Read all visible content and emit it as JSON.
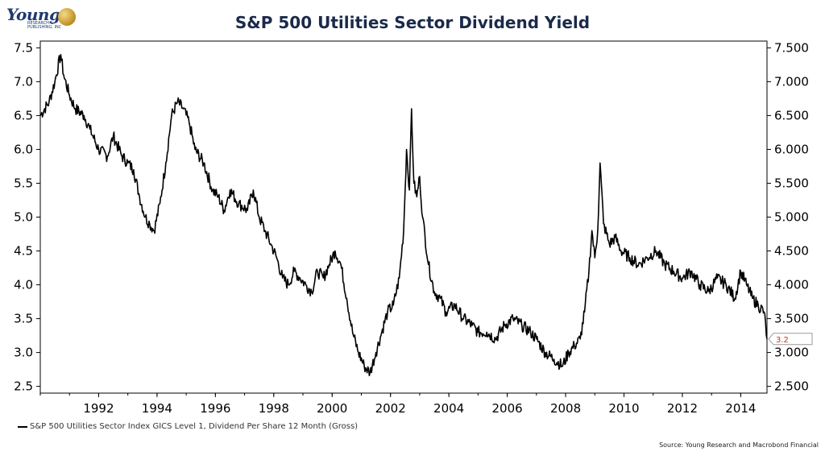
{
  "logo": {
    "word": "Young",
    "sub": "RESEARCH & PUBLISHING, INC"
  },
  "chart_data": {
    "type": "line",
    "title": "S&P 500 Utilities Sector Dividend Yield",
    "xlabel": "",
    "ylabel": "",
    "xlim": [
      1990.0,
      2014.9
    ],
    "ylim": [
      2.4,
      7.6
    ],
    "x_ticks": [
      "1992",
      "1994",
      "1996",
      "1998",
      "2000",
      "2002",
      "2004",
      "2006",
      "2008",
      "2010",
      "2012",
      "2014"
    ],
    "y_ticks_left": [
      "2.5",
      "3.0",
      "3.5",
      "4.0",
      "4.5",
      "5.0",
      "5.5",
      "6.0",
      "6.5",
      "7.0",
      "7.5"
    ],
    "y_ticks_right": [
      "2.500",
      "3.000",
      "3.500",
      "4.000",
      "4.500",
      "5.000",
      "5.500",
      "6.000",
      "6.500",
      "7.000",
      "7.500"
    ],
    "last_value_label": "3.2",
    "legend_position": "bottom-left",
    "grid": false,
    "series": [
      {
        "name": "S&P 500 Utilities Sector Index GICS Level 1, Dividend Per Share 12 Month (Gross)",
        "color": "#000000",
        "x": [
          1990.0,
          1990.3,
          1990.5,
          1990.7,
          1990.8,
          1991.0,
          1991.2,
          1991.5,
          1991.7,
          1992.0,
          1992.3,
          1992.5,
          1992.8,
          1993.0,
          1993.2,
          1993.4,
          1993.6,
          1993.75,
          1993.9,
          1994.1,
          1994.3,
          1994.5,
          1994.7,
          1994.9,
          1995.1,
          1995.3,
          1995.6,
          1995.9,
          1996.1,
          1996.3,
          1996.5,
          1996.8,
          1997.1,
          1997.3,
          1997.5,
          1997.7,
          1997.9,
          1998.1,
          1998.3,
          1998.5,
          1998.7,
          1998.9,
          1999.1,
          1999.3,
          1999.5,
          1999.7,
          1999.9,
          2000.1,
          2000.3,
          2000.5,
          2000.7,
          2000.9,
          2001.1,
          2001.3,
          2001.5,
          2001.7,
          2001.9,
          2002.1,
          2002.3,
          2002.45,
          2002.55,
          2002.65,
          2002.72,
          2002.8,
          2002.9,
          2003.0,
          2003.1,
          2003.3,
          2003.5,
          2003.7,
          2003.9,
          2004.2,
          2004.5,
          2004.8,
          2005.0,
          2005.3,
          2005.6,
          2005.9,
          2006.2,
          2006.5,
          2006.8,
          2007.0,
          2007.3,
          2007.6,
          2007.9,
          2008.1,
          2008.3,
          2008.5,
          2008.65,
          2008.8,
          2008.9,
          2009.0,
          2009.1,
          2009.18,
          2009.3,
          2009.5,
          2009.7,
          2009.9,
          2010.2,
          2010.5,
          2010.8,
          2011.1,
          2011.4,
          2011.7,
          2012.0,
          2012.3,
          2012.6,
          2012.9,
          2013.2,
          2013.5,
          2013.8,
          2014.0,
          2014.2,
          2014.4,
          2014.6,
          2014.8,
          2014.9
        ],
        "values": [
          6.5,
          6.7,
          7.0,
          7.4,
          7.1,
          6.8,
          6.6,
          6.5,
          6.3,
          6.0,
          5.9,
          6.2,
          5.9,
          5.8,
          5.7,
          5.3,
          5.0,
          4.9,
          4.8,
          5.2,
          5.8,
          6.5,
          6.7,
          6.6,
          6.4,
          6.0,
          5.8,
          5.4,
          5.3,
          5.1,
          5.4,
          5.2,
          5.1,
          5.4,
          5.0,
          4.8,
          4.6,
          4.4,
          4.1,
          4.0,
          4.2,
          4.1,
          4.0,
          3.9,
          4.2,
          4.1,
          4.3,
          4.5,
          4.3,
          3.8,
          3.3,
          3.0,
          2.8,
          2.7,
          3.0,
          3.3,
          3.6,
          3.7,
          4.1,
          4.8,
          6.0,
          5.4,
          6.6,
          5.5,
          5.3,
          5.6,
          5.0,
          4.3,
          3.9,
          3.8,
          3.6,
          3.7,
          3.5,
          3.4,
          3.3,
          3.3,
          3.2,
          3.4,
          3.5,
          3.4,
          3.3,
          3.2,
          3.0,
          2.9,
          2.8,
          3.0,
          3.1,
          3.2,
          3.6,
          4.2,
          4.8,
          4.4,
          4.8,
          5.8,
          4.9,
          4.6,
          4.7,
          4.5,
          4.4,
          4.3,
          4.4,
          4.5,
          4.3,
          4.2,
          4.1,
          4.2,
          4.0,
          3.9,
          4.1,
          4.0,
          3.8,
          4.2,
          4.0,
          3.8,
          3.7,
          3.6,
          3.2
        ]
      }
    ]
  },
  "source_text": "Source: Young Research and Macrobond Financial"
}
